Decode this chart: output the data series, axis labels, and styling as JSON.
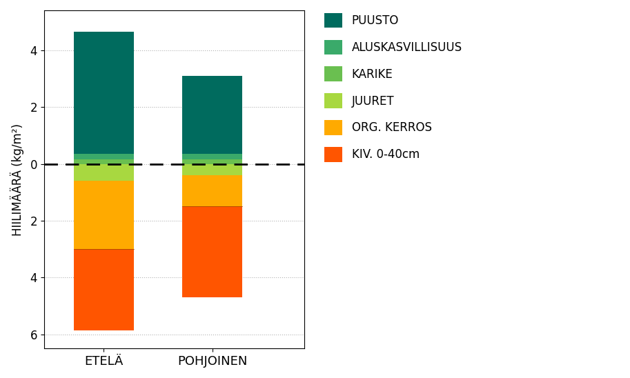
{
  "categories": [
    "ETELÄ",
    "POHJOINEN"
  ],
  "above": {
    "KARIKE": [
      0.15,
      0.15
    ],
    "ALUSKASVILLISUUS": [
      0.2,
      0.2
    ],
    "PUUSTO": [
      4.3,
      2.75
    ]
  },
  "below": {
    "JUURET": [
      0.6,
      0.4
    ],
    "ORG. KERROS": [
      2.4,
      1.1
    ],
    "KIV. 0-40cm": [
      2.85,
      3.2
    ]
  },
  "colors": {
    "PUUSTO": "#006b5e",
    "ALUSKASVILLISUUS": "#3aaa6a",
    "KARIKE": "#6abf50",
    "JUURET": "#a8d840",
    "ORG. KERROS": "#ffaa00",
    "KIV. 0-40cm": "#ff5500"
  },
  "legend_order": [
    "PUUSTO",
    "ALUSKASVILLISUUS",
    "KARIKE",
    "JUURET",
    "ORG. KERROS",
    "KIV. 0-40cm"
  ],
  "ylabel": "HIILIMÄÄRÄ (kg/m²)",
  "ylim": [
    -6.5,
    5.4
  ],
  "yticks": [
    -6,
    -4,
    -2,
    0,
    2,
    4
  ],
  "bar_width": 0.55,
  "bg_color": "#ffffff",
  "separator_color": "#884400"
}
